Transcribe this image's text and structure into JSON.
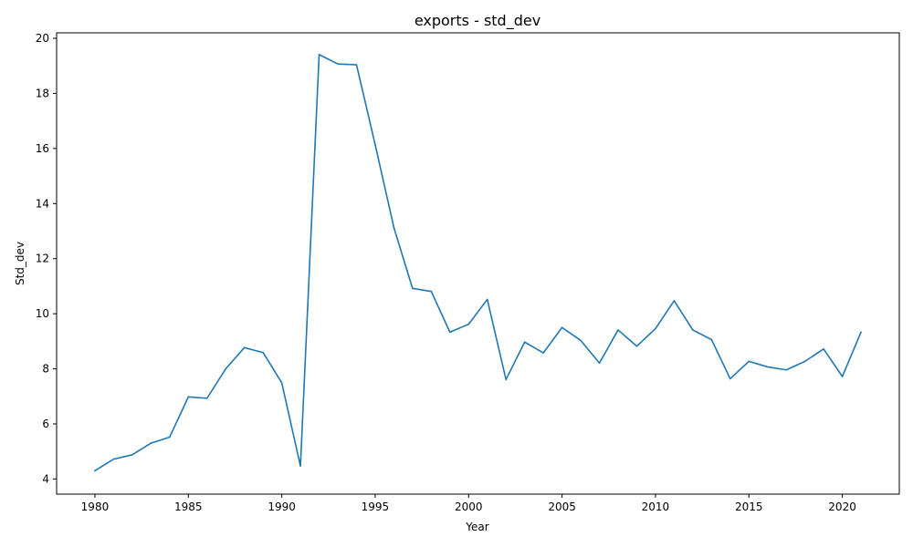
{
  "chart_data": {
    "type": "line",
    "title": "exports - std_dev",
    "xlabel": "Year",
    "ylabel": "Std_dev",
    "xlim": [
      1977.95,
      2023.05
    ],
    "ylim": [
      3.45,
      20.2
    ],
    "xticks": [
      1980,
      1985,
      1990,
      1995,
      2000,
      2005,
      2010,
      2015,
      2020
    ],
    "yticks": [
      4,
      6,
      8,
      10,
      12,
      14,
      16,
      18,
      20
    ],
    "grid": false,
    "legend": "none",
    "series": [
      {
        "color": "#1f77b4",
        "x": [
          1980,
          1981,
          1982,
          1983,
          1984,
          1985,
          1986,
          1987,
          1988,
          1989,
          1990,
          1991,
          1992,
          1993,
          1994,
          1995,
          1996,
          1997,
          1998,
          1999,
          2000,
          2001,
          2002,
          2003,
          2004,
          2005,
          2006,
          2007,
          2008,
          2009,
          2010,
          2011,
          2012,
          2013,
          2014,
          2015,
          2016,
          2017,
          2018,
          2019,
          2020,
          2021
        ],
        "y": [
          4.3,
          4.72,
          4.88,
          5.3,
          5.52,
          6.98,
          6.93,
          8.0,
          8.77,
          8.59,
          7.49,
          4.47,
          19.41,
          19.07,
          19.04,
          16.14,
          13.13,
          10.92,
          10.81,
          9.33,
          9.62,
          10.52,
          7.61,
          8.97,
          8.58,
          9.5,
          9.03,
          8.21,
          9.41,
          8.82,
          9.46,
          10.47,
          9.41,
          9.06,
          7.64,
          8.27,
          8.07,
          7.96,
          8.27,
          8.72,
          7.72,
          9.33
        ]
      }
    ]
  }
}
